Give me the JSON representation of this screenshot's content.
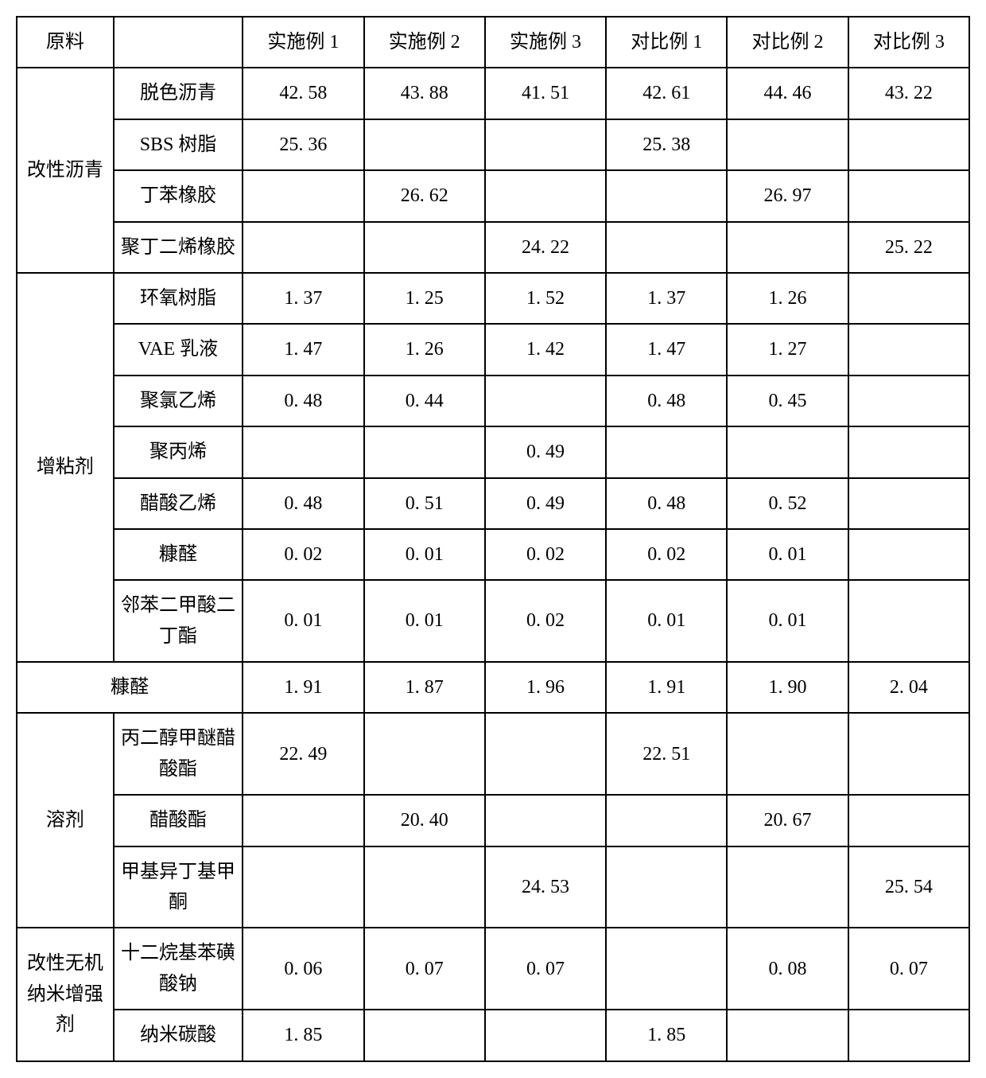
{
  "table": {
    "border_color": "#000000",
    "background_color": "#ffffff",
    "text_color": "#000000",
    "font_size": 24,
    "header": {
      "col0": "原料",
      "col1": "",
      "exp1": "实施例 1",
      "exp2": "实施例 2",
      "exp3": "实施例 3",
      "cmp1": "对比例 1",
      "cmp2": "对比例 2",
      "cmp3": "对比例 3"
    },
    "groups": [
      {
        "category": "改性沥青",
        "rows": [
          {
            "sub": "脱色沥青",
            "v": [
              "42. 58",
              "43. 88",
              "41. 51",
              "42. 61",
              "44. 46",
              "43. 22"
            ]
          },
          {
            "sub": "SBS 树脂",
            "v": [
              "25. 36",
              "",
              "",
              "25. 38",
              "",
              ""
            ]
          },
          {
            "sub": "丁苯橡胶",
            "v": [
              "",
              "26. 62",
              "",
              "",
              "26. 97",
              ""
            ]
          },
          {
            "sub": "聚丁二烯橡胶",
            "v": [
              "",
              "",
              "24. 22",
              "",
              "",
              "25. 22"
            ]
          }
        ]
      },
      {
        "category": "增粘剂",
        "rows": [
          {
            "sub": "环氧树脂",
            "v": [
              "1. 37",
              "1. 25",
              "1. 52",
              "1. 37",
              "1. 26",
              ""
            ]
          },
          {
            "sub": "VAE 乳液",
            "v": [
              "1. 47",
              "1. 26",
              "1. 42",
              "1. 47",
              "1. 27",
              ""
            ]
          },
          {
            "sub": "聚氯乙烯",
            "v": [
              "0. 48",
              "0. 44",
              "",
              "0. 48",
              "0. 45",
              ""
            ]
          },
          {
            "sub": "聚丙烯",
            "v": [
              "",
              "",
              "0. 49",
              "",
              "",
              ""
            ]
          },
          {
            "sub": "醋酸乙烯",
            "v": [
              "0. 48",
              "0. 51",
              "0. 49",
              "0. 48",
              "0. 52",
              ""
            ]
          },
          {
            "sub": "糠醛",
            "v": [
              "0. 02",
              "0. 01",
              "0. 02",
              "0. 02",
              "0. 01",
              ""
            ]
          },
          {
            "sub": "邻苯二甲酸二丁酯",
            "v": [
              "0. 01",
              "0. 01",
              "0. 02",
              "0. 01",
              "0. 01",
              ""
            ]
          }
        ]
      },
      {
        "category_merged": "糠醛",
        "rows": [
          {
            "v": [
              "1. 91",
              "1. 87",
              "1. 96",
              "1. 91",
              "1. 90",
              "2. 04"
            ]
          }
        ]
      },
      {
        "category": "溶剂",
        "rows": [
          {
            "sub": "丙二醇甲醚醋酸酯",
            "v": [
              "22. 49",
              "",
              "",
              "22. 51",
              "",
              ""
            ]
          },
          {
            "sub": "醋酸酯",
            "v": [
              "",
              "20. 40",
              "",
              "",
              "20. 67",
              ""
            ]
          },
          {
            "sub": "甲基异丁基甲酮",
            "v": [
              "",
              "",
              "24. 53",
              "",
              "",
              "25. 54"
            ]
          }
        ]
      },
      {
        "category": "改性无机纳米增强剂",
        "rows": [
          {
            "sub": "十二烷基苯磺酸钠",
            "v": [
              "0. 06",
              "0. 07",
              "0. 07",
              "",
              "0. 08",
              "0. 07"
            ]
          },
          {
            "sub": "纳米碳酸",
            "v": [
              "1. 85",
              "",
              "",
              "1. 85",
              "",
              ""
            ]
          }
        ]
      }
    ]
  }
}
